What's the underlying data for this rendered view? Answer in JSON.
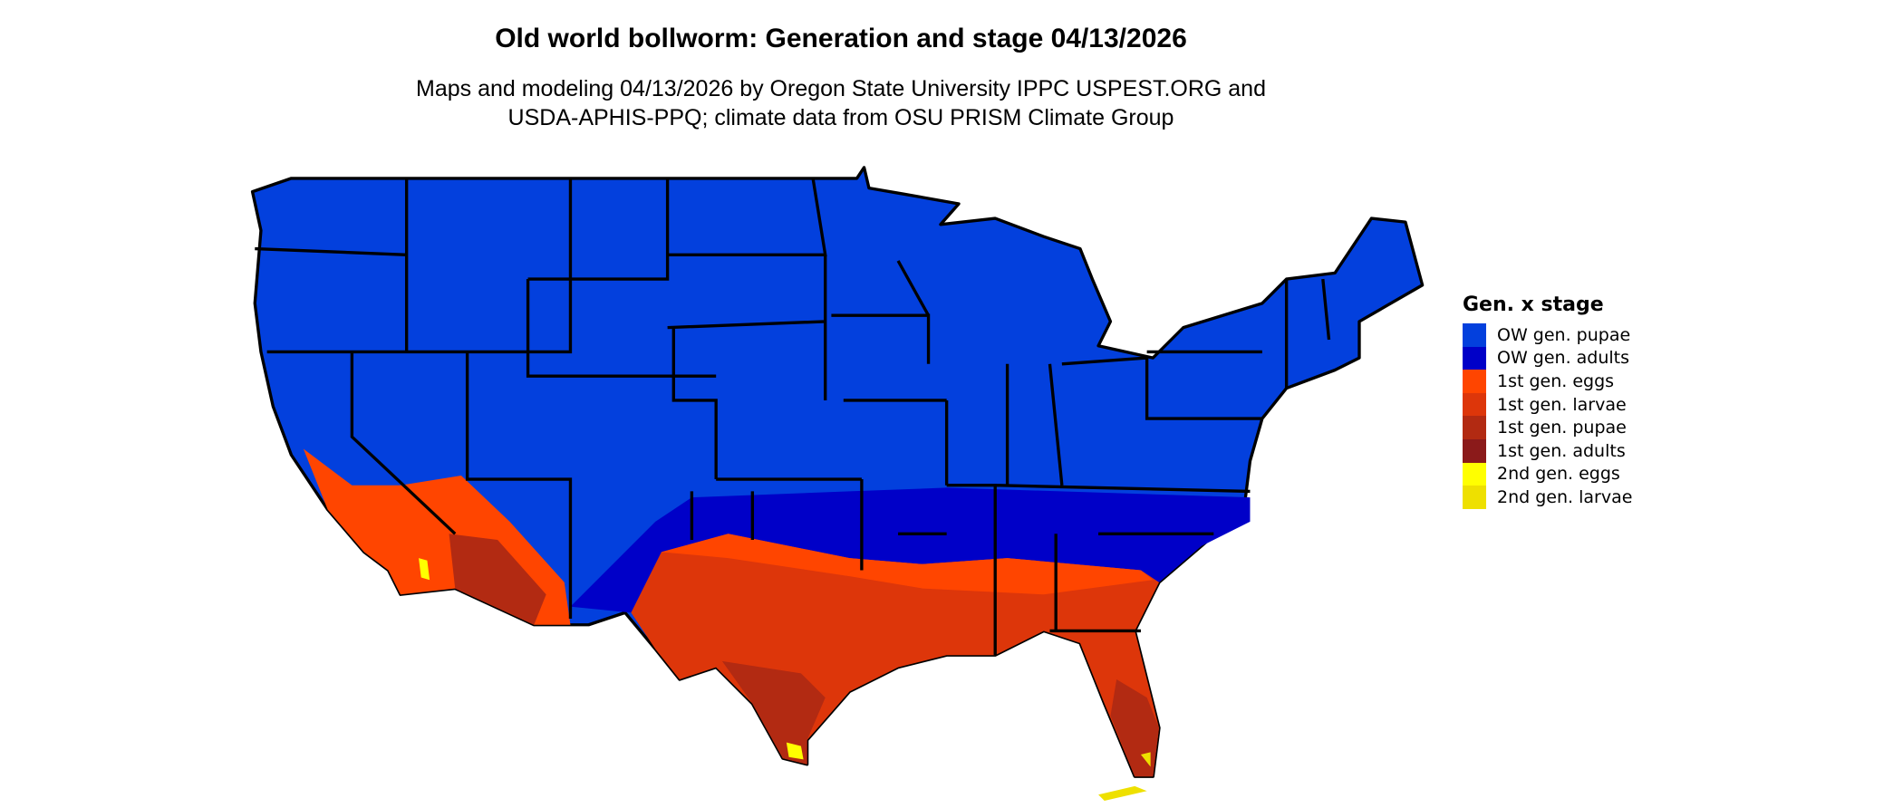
{
  "title": "Old world bollworm: Generation and stage 04/13/2026",
  "subtitle_line1": "Maps and modeling 04/13/2026 by Oregon State University IPPC USPEST.ORG and",
  "subtitle_line2": "USDA-APHIS-PPQ; climate data from OSU PRISM Climate Group",
  "legend": {
    "title": "Gen. x stage",
    "items": [
      {
        "label": "OW gen. pupae",
        "color": "#0340DD"
      },
      {
        "label": "OW gen. adults",
        "color": "#0000C8"
      },
      {
        "label": "1st gen. eggs",
        "color": "#FF4500"
      },
      {
        "label": "1st gen. larvae",
        "color": "#DD360A"
      },
      {
        "label": "1st gen. pupae",
        "color": "#B22A12"
      },
      {
        "label": "1st gen. adults",
        "color": "#8B1A1A"
      },
      {
        "label": "2nd gen. eggs",
        "color": "#FFFF00"
      },
      {
        "label": "2nd gen. larvae",
        "color": "#EEE000"
      }
    ]
  }
}
